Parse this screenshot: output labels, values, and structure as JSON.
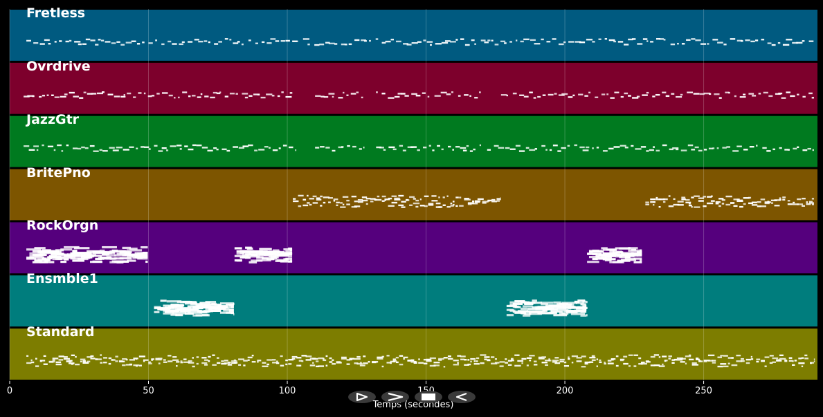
{
  "chart_data": {
    "type": "piano-roll",
    "xlabel": "Temps (secondes)",
    "xlim": [
      0,
      291
    ],
    "grid": true,
    "x_ticks": [
      "0",
      "50",
      "100",
      "150",
      "200",
      "250"
    ],
    "x_tick_values": [
      0,
      50,
      100,
      150,
      200,
      250
    ],
    "tracks": [
      {
        "name": "Fretless",
        "color": "#005a80",
        "density": 1,
        "segments": [
          [
            6,
            290
          ]
        ]
      },
      {
        "name": "Ovrdrive",
        "color": "#7d002c",
        "density": 1,
        "segments": [
          [
            5,
            103
          ],
          [
            110,
            128
          ],
          [
            132,
            170
          ],
          [
            177,
            290
          ]
        ]
      },
      {
        "name": "JazzGtr",
        "color": "#007a1f",
        "density": 1,
        "segments": [
          [
            5,
            103
          ],
          [
            110,
            128
          ],
          [
            132,
            170
          ],
          [
            172,
            290
          ]
        ]
      },
      {
        "name": "BritePno",
        "color": "#7d5500",
        "density": 2,
        "segments": [
          [
            102,
            177
          ],
          [
            229,
            290
          ]
        ]
      },
      {
        "name": "RockOrgn",
        "color": "#55007d",
        "density": 3,
        "segments": [
          [
            6,
            50
          ],
          [
            81,
            102
          ],
          [
            208,
            228
          ]
        ]
      },
      {
        "name": "Ensmble1",
        "color": "#007d7d",
        "density": 3,
        "segments": [
          [
            52,
            81
          ],
          [
            179,
            208
          ]
        ]
      },
      {
        "name": "Standard",
        "color": "#7d7d00",
        "density": 2,
        "segments": [
          [
            6,
            290
          ]
        ]
      }
    ]
  },
  "controls": {
    "play_icon": "play-icon",
    "forward_icon": "forward-icon",
    "stop_icon": "stop-icon",
    "back_icon": "back-icon"
  }
}
